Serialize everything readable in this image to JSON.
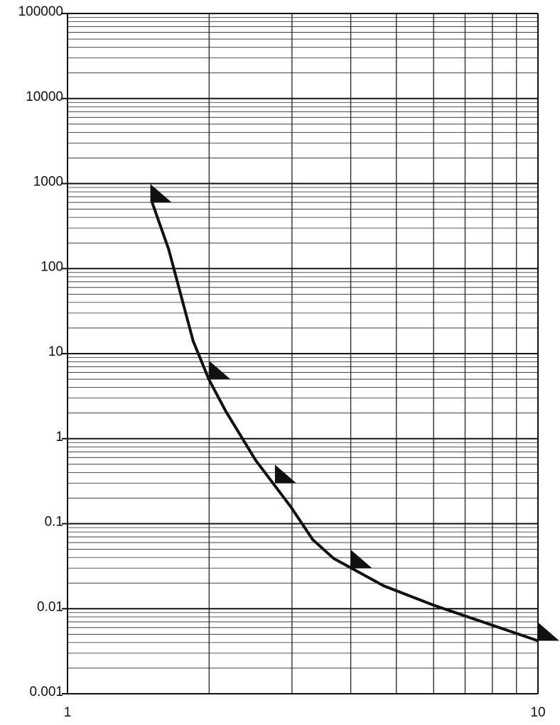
{
  "chart_data": {
    "type": "line",
    "xscale": "log",
    "yscale": "log",
    "grid": true,
    "xlim": [
      1,
      10
    ],
    "xticks": [
      1,
      10
    ],
    "ylim": [
      0.001,
      100000
    ],
    "yticks": [
      100000,
      10000,
      1000,
      100,
      10,
      1,
      0.1,
      0.01,
      0.001
    ],
    "series": [
      {
        "color": "#111111",
        "x": [
          1.51,
          1.64,
          1.85,
          2.0,
          2.17,
          2.51,
          2.99,
          3.32,
          3.68,
          4.7,
          6.0,
          10
        ],
        "values": [
          620,
          170,
          14,
          4.9,
          2.1,
          0.56,
          0.155,
          0.065,
          0.039,
          0.0186,
          0.011,
          0.0042
        ]
      },
      {
        "type": "scatter",
        "marker": "triangle",
        "color": "#111111",
        "x": [
          1.5,
          2.0,
          2.76,
          4.0,
          10
        ],
        "values": [
          600,
          5,
          0.3,
          0.03,
          0.0042
        ]
      }
    ]
  }
}
